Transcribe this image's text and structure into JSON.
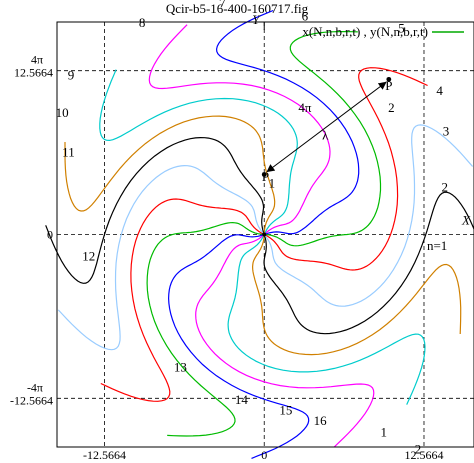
{
  "chart_data": {
    "type": "line",
    "title": "Qcir-b5-16-400-160717.fig",
    "legend": {
      "label": "x(N,n,b,r,t) , y(N,n,b,r,t)",
      "color": "#00aa00",
      "placement": "top-right"
    },
    "xlabel": "X",
    "ylabel": "Y",
    "xlim": [
      -16.3,
      16.5
    ],
    "ylim": [
      -16.3,
      16.3
    ],
    "grid": true,
    "grid_style": "dashed",
    "x_ticks": [
      {
        "value": -12.5664,
        "label": "-12.5664",
        "label2": "-4π"
      },
      {
        "value": 0,
        "label": "0",
        "label2": ""
      },
      {
        "value": 12.5664,
        "label": "12.5664",
        "label2": "4π"
      }
    ],
    "y_ticks": [
      {
        "value": 12.5664,
        "label": "12.5664",
        "label2": "4π"
      },
      {
        "value": 0,
        "label": "0",
        "label2": ""
      },
      {
        "value": -12.5664,
        "label": "-12.5664",
        "label2": "-4π"
      }
    ],
    "spiral": {
      "arms": 16,
      "points_per_arm": 90,
      "r_max": 17.2,
      "note_origin_loop": "arms emanate from origin with small loop"
    },
    "series": [
      {
        "name": "1",
        "color": "#ff0000",
        "theta0_deg": -62
      },
      {
        "name": "2",
        "color": "#00bb00",
        "theta0_deg": -39
      },
      {
        "name": "3",
        "color": "#0000ff",
        "theta0_deg": -16
      },
      {
        "name": "4",
        "color": "#ff00ff",
        "theta0_deg": 7
      },
      {
        "name": "5",
        "color": "#00cccc",
        "theta0_deg": 29
      },
      {
        "name": "6",
        "color": "#d08000",
        "theta0_deg": 52
      },
      {
        "name": "7",
        "color": "#000000",
        "theta0_deg": 74
      },
      {
        "name": "8",
        "color": "#99ccff",
        "theta0_deg": 96
      },
      {
        "name": "9",
        "color": "#ff0000",
        "theta0_deg": 118
      },
      {
        "name": "10",
        "color": "#00bb00",
        "theta0_deg": 140
      },
      {
        "name": "11",
        "color": "#0000ff",
        "theta0_deg": 163
      },
      {
        "name": "12",
        "color": "#ff00ff",
        "theta0_deg": 185
      },
      {
        "name": "13",
        "color": "#00cccc",
        "theta0_deg": 207
      },
      {
        "name": "14",
        "color": "#d08000",
        "theta0_deg": 230
      },
      {
        "name": "15",
        "color": "#000000",
        "theta0_deg": 252
      },
      {
        "name": "16",
        "color": "#99ccff",
        "theta0_deg": 274
      }
    ],
    "curve_labels": [
      {
        "text": "n=1",
        "x": 13.6,
        "y": -1.2
      },
      {
        "text": "2",
        "x": 14.2,
        "y": 3.3
      },
      {
        "text": "3",
        "x": 14.3,
        "y": 7.6
      },
      {
        "text": "4",
        "x": 13.8,
        "y": 10.7
      },
      {
        "text": "5",
        "x": 10.8,
        "y": 15.5
      },
      {
        "text": "6",
        "x": 3.2,
        "y": 16.4
      },
      {
        "text": "7",
        "x": -3.3,
        "y": 17.4
      },
      {
        "text": "8",
        "x": -9.6,
        "y": 15.9
      },
      {
        "text": "9",
        "x": -15.2,
        "y": 11.9
      },
      {
        "text": "10",
        "x": -15.9,
        "y": 9.0
      },
      {
        "text": "11",
        "x": -15.4,
        "y": 6.0
      },
      {
        "text": "12",
        "x": -13.8,
        "y": -2.0
      },
      {
        "text": "13",
        "x": -6.6,
        "y": -10.5
      },
      {
        "text": "14",
        "x": -1.8,
        "y": -13.0
      },
      {
        "text": "15",
        "x": 1.7,
        "y": -13.8
      },
      {
        "text": "16",
        "x": 4.4,
        "y": -14.6
      },
      {
        "text": "1",
        "x": 9.4,
        "y": -15.5
      },
      {
        "text": "2",
        "x": 12.1,
        "y": -16.8
      }
    ],
    "annotations": [
      {
        "text": "4π",
        "x": 3.2,
        "y": 9.4
      },
      {
        "text": "λ",
        "x": 4.8,
        "y": 7.3
      },
      {
        "text": "P",
        "x": 0.1,
        "y": 4.1
      },
      {
        "text": "1",
        "x": 0.6,
        "y": 3.6
      },
      {
        "text": "P",
        "x": 9.8,
        "y": 11.1
      },
      {
        "text": "2",
        "x": 10.0,
        "y": 9.4
      }
    ],
    "points": [
      {
        "name": "P1",
        "x": 0.0,
        "y": 4.6
      },
      {
        "name": "P2",
        "x": 9.8,
        "y": 11.9
      }
    ]
  }
}
